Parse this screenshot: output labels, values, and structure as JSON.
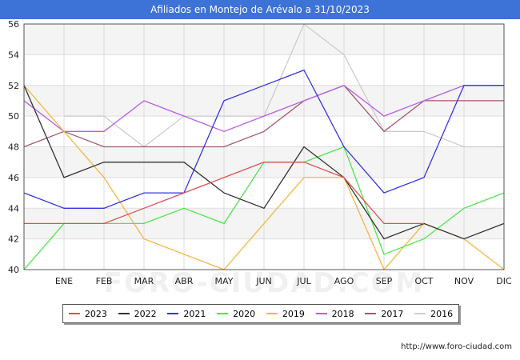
{
  "chart_data": {
    "type": "line",
    "title": "Afiliados en Montejo de Arévalo a 31/10/2023",
    "categories": [
      "",
      "ENE",
      "FEB",
      "MAR",
      "ABR",
      "MAY",
      "JUN",
      "JUL",
      "AGO",
      "SEP",
      "OCT",
      "NOV",
      "DIC"
    ],
    "ylim": [
      40,
      56
    ],
    "yticks": [
      40,
      42,
      44,
      46,
      48,
      50,
      52,
      54,
      56
    ],
    "grid": true,
    "legend_position": "bottom",
    "watermark": "FORO-CIUDAD.COM",
    "series": [
      {
        "name": "2016",
        "color": "#cccccc",
        "values": [
          null,
          50,
          50,
          48,
          50,
          50,
          50,
          56,
          54,
          49,
          49,
          48,
          48
        ]
      },
      {
        "name": "2017",
        "color": "#a05a6e",
        "values": [
          48,
          49,
          48,
          48,
          48,
          48,
          49,
          51,
          52,
          49,
          51,
          51,
          51
        ]
      },
      {
        "name": "2018",
        "color": "#b85de6",
        "values": [
          51,
          49,
          49,
          51,
          50,
          49,
          50,
          51,
          52,
          50,
          51,
          52,
          52
        ]
      },
      {
        "name": "2019",
        "color": "#f5b642",
        "values": [
          52,
          49,
          46,
          42,
          41,
          40,
          43,
          46,
          46,
          40,
          43,
          42,
          40
        ]
      },
      {
        "name": "2020",
        "color": "#4de64d",
        "values": [
          40,
          43,
          43,
          43,
          44,
          43,
          47,
          47,
          48,
          41,
          42,
          44,
          45
        ]
      },
      {
        "name": "2021",
        "color": "#3535e0",
        "values": [
          45,
          44,
          44,
          45,
          45,
          51,
          52,
          53,
          48,
          45,
          46,
          52,
          52
        ]
      },
      {
        "name": "2022",
        "color": "#333333",
        "values": [
          52,
          46,
          47,
          47,
          47,
          45,
          44,
          48,
          46,
          42,
          43,
          42,
          43
        ]
      },
      {
        "name": "2023",
        "color": "#e05050",
        "values": [
          43,
          43,
          43,
          44,
          45,
          46,
          47,
          47,
          46,
          43,
          43,
          null,
          null
        ]
      }
    ],
    "legend_order": [
      "2023",
      "2022",
      "2021",
      "2020",
      "2019",
      "2018",
      "2017",
      "2016"
    ]
  },
  "source": "http://www.foro-ciudad.com"
}
